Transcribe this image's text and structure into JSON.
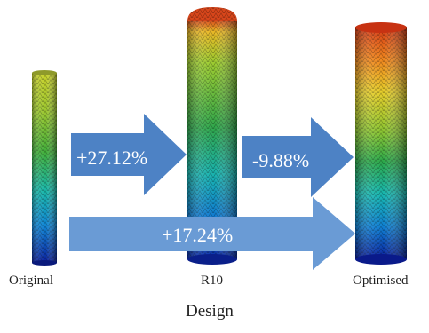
{
  "designs": [
    {
      "name": "Original"
    },
    {
      "name": "R10"
    },
    {
      "name": "Optimised"
    }
  ],
  "arrows": [
    {
      "from": "Original",
      "to": "R10",
      "label": "+27.12%"
    },
    {
      "from": "R10",
      "to": "Optimised",
      "label": "-9.88%"
    },
    {
      "from": "Original",
      "to": "Optimised",
      "label": "+17.24%"
    }
  ],
  "axis_label": "Design",
  "colors": {
    "arrow_fill": "#4d82c5",
    "arrow_fill_light": "#6a9bd5",
    "text": "#222222",
    "colormap": [
      "#08149c",
      "#0a4fcf",
      "#0f8bd6",
      "#16b7c8",
      "#17b8a0",
      "#1ea64c",
      "#5fb834",
      "#a8cc2c",
      "#dfd42b",
      "#f5b21f",
      "#f0731c",
      "#d43a15"
    ]
  }
}
